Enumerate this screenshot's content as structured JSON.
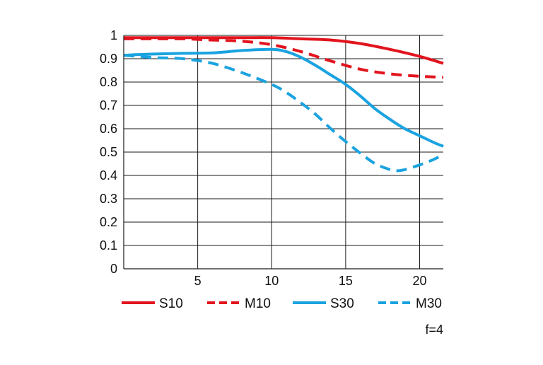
{
  "chart_data": {
    "type": "line",
    "title": "",
    "xlabel": "",
    "ylabel": "",
    "xlim": [
      0,
      21.6
    ],
    "ylim": [
      0,
      1
    ],
    "x_ticks": [
      5,
      10,
      15,
      20
    ],
    "x_tick_labels": [
      "5",
      "10",
      "15",
      "20"
    ],
    "y_ticks": [
      0,
      0.1,
      0.2,
      0.3,
      0.4,
      0.5,
      0.6,
      0.7,
      0.8,
      0.9,
      1
    ],
    "y_tick_labels": [
      "0",
      "0.1",
      "0.2",
      "0.3",
      "0.4",
      "0.5",
      "0.6",
      "0.7",
      "0.8",
      "0.9",
      "1"
    ],
    "grid": true,
    "legend_position": "bottom",
    "note": "f=4",
    "series": [
      {
        "name": "S10",
        "color": "#e2141e",
        "dash": "solid",
        "x": [
          0,
          2,
          4,
          6,
          8,
          10,
          12,
          14,
          16,
          18,
          20,
          21.6
        ],
        "y": [
          0.99,
          0.99,
          0.99,
          0.99,
          0.99,
          0.99,
          0.985,
          0.98,
          0.965,
          0.94,
          0.91,
          0.88
        ]
      },
      {
        "name": "M10",
        "color": "#e2141e",
        "dash": "dashed",
        "x": [
          0,
          2,
          4,
          6,
          8,
          10,
          12,
          14,
          16,
          18,
          20,
          21.6
        ],
        "y": [
          0.985,
          0.985,
          0.985,
          0.98,
          0.975,
          0.96,
          0.93,
          0.89,
          0.855,
          0.835,
          0.825,
          0.82
        ]
      },
      {
        "name": "S30",
        "color": "#1aa3e0",
        "dash": "solid",
        "x": [
          0,
          2,
          4,
          6,
          8,
          10,
          11,
          12,
          13,
          14,
          15,
          16,
          17,
          18,
          19,
          20,
          21,
          21.6
        ],
        "y": [
          0.915,
          0.92,
          0.923,
          0.925,
          0.935,
          0.94,
          0.93,
          0.905,
          0.87,
          0.83,
          0.79,
          0.74,
          0.685,
          0.64,
          0.6,
          0.57,
          0.54,
          0.525
        ]
      },
      {
        "name": "M30",
        "color": "#1aa3e0",
        "dash": "dashed",
        "x": [
          0,
          2,
          4,
          6,
          8,
          10,
          11,
          12,
          13,
          14,
          15,
          16,
          17,
          18,
          18.5,
          19,
          20,
          21,
          21.6
        ],
        "y": [
          0.915,
          0.905,
          0.9,
          0.88,
          0.84,
          0.79,
          0.755,
          0.71,
          0.66,
          0.6,
          0.545,
          0.495,
          0.45,
          0.425,
          0.42,
          0.425,
          0.445,
          0.47,
          0.49
        ]
      }
    ]
  }
}
